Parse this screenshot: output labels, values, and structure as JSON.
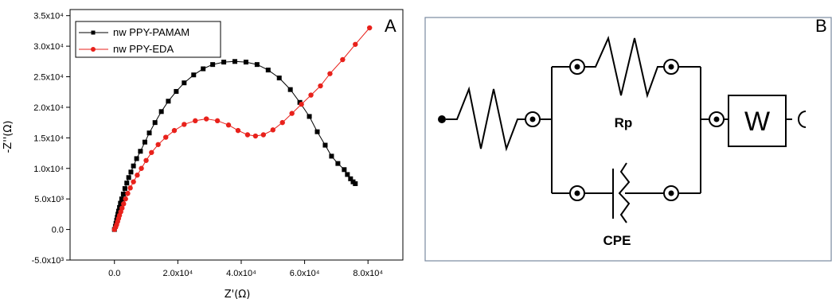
{
  "panel_a_letter": "A",
  "panel_b_letter": "B",
  "chart_data": {
    "type": "scatter",
    "xlabel": "Z'(Ω)",
    "ylabel": "-Z''(Ω)",
    "xlim": [
      -14000,
      91000
    ],
    "ylim": [
      -5000,
      36000
    ],
    "x_ticks": [
      {
        "value": 0,
        "label": "0.0"
      },
      {
        "value": 20000,
        "label": "2.0x10⁴"
      },
      {
        "value": 40000,
        "label": "4.0x10⁴"
      },
      {
        "value": 60000,
        "label": "6.0x10⁴"
      },
      {
        "value": 80000,
        "label": "8.0x10⁴"
      }
    ],
    "y_ticks": [
      {
        "value": -5000,
        "label": "-5.0x10³"
      },
      {
        "value": 0,
        "label": "0.0"
      },
      {
        "value": 5000,
        "label": "5.0x10³"
      },
      {
        "value": 10000,
        "label": "1.0x10⁴"
      },
      {
        "value": 15000,
        "label": "1.5x10⁴"
      },
      {
        "value": 20000,
        "label": "2.0x10⁴"
      },
      {
        "value": 25000,
        "label": "2.5x10⁴"
      },
      {
        "value": 30000,
        "label": "3.0x10⁴"
      },
      {
        "value": 35000,
        "label": "3.5x10⁴"
      }
    ],
    "legend_position": "top-left",
    "series": [
      {
        "name": "nw PPY-PAMAM",
        "color": "#000000",
        "marker": "square",
        "points": [
          [
            0,
            0
          ],
          [
            300,
            500
          ],
          [
            500,
            1000
          ],
          [
            700,
            1500
          ],
          [
            900,
            2000
          ],
          [
            1100,
            2500
          ],
          [
            1300,
            3000
          ],
          [
            1600,
            3600
          ],
          [
            1900,
            4300
          ],
          [
            2300,
            5000
          ],
          [
            2800,
            5800
          ],
          [
            3300,
            6700
          ],
          [
            3900,
            7600
          ],
          [
            4500,
            8500
          ],
          [
            5200,
            9400
          ],
          [
            6000,
            10400
          ],
          [
            7000,
            11600
          ],
          [
            8200,
            12800
          ],
          [
            9600,
            14300
          ],
          [
            11000,
            15800
          ],
          [
            12800,
            17500
          ],
          [
            14800,
            19300
          ],
          [
            17000,
            21000
          ],
          [
            19500,
            22600
          ],
          [
            22000,
            24000
          ],
          [
            25000,
            25300
          ],
          [
            28000,
            26300
          ],
          [
            31000,
            27000
          ],
          [
            34500,
            27400
          ],
          [
            38000,
            27500
          ],
          [
            41500,
            27400
          ],
          [
            45000,
            27000
          ],
          [
            48500,
            26100
          ],
          [
            52000,
            24800
          ],
          [
            55500,
            22900
          ],
          [
            58500,
            20800
          ],
          [
            61500,
            18500
          ],
          [
            64000,
            16000
          ],
          [
            66500,
            13800
          ],
          [
            68500,
            12000
          ],
          [
            70500,
            10800
          ],
          [
            72500,
            9800
          ],
          [
            73500,
            9000
          ],
          [
            74500,
            8300
          ],
          [
            75300,
            7800
          ],
          [
            76000,
            7500
          ]
        ]
      },
      {
        "name": "nw PPY-EDA",
        "color": "#e8211b",
        "marker": "circle",
        "points": [
          [
            0,
            0
          ],
          [
            400,
            400
          ],
          [
            700,
            800
          ],
          [
            1000,
            1300
          ],
          [
            1300,
            1800
          ],
          [
            1600,
            2300
          ],
          [
            2000,
            2900
          ],
          [
            2400,
            3500
          ],
          [
            2900,
            4200
          ],
          [
            3500,
            5000
          ],
          [
            4200,
            5900
          ],
          [
            5000,
            6800
          ],
          [
            6000,
            7800
          ],
          [
            7200,
            8900
          ],
          [
            8500,
            10000
          ],
          [
            10000,
            11300
          ],
          [
            11700,
            12600
          ],
          [
            13800,
            13900
          ],
          [
            16200,
            15100
          ],
          [
            18900,
            16200
          ],
          [
            22000,
            17200
          ],
          [
            25500,
            17800
          ],
          [
            29000,
            18100
          ],
          [
            32500,
            17800
          ],
          [
            36000,
            17100
          ],
          [
            39000,
            16200
          ],
          [
            42000,
            15500
          ],
          [
            44500,
            15300
          ],
          [
            47000,
            15500
          ],
          [
            50000,
            16300
          ],
          [
            53000,
            17500
          ],
          [
            56000,
            19000
          ],
          [
            59000,
            20500
          ],
          [
            62000,
            22000
          ],
          [
            65000,
            23500
          ],
          [
            68000,
            25500
          ],
          [
            72000,
            27800
          ],
          [
            76000,
            30300
          ],
          [
            80500,
            33000
          ]
        ]
      }
    ]
  },
  "circuit": {
    "rp_label": "Rp",
    "cpe_label": "CPE",
    "w_label": "W"
  }
}
